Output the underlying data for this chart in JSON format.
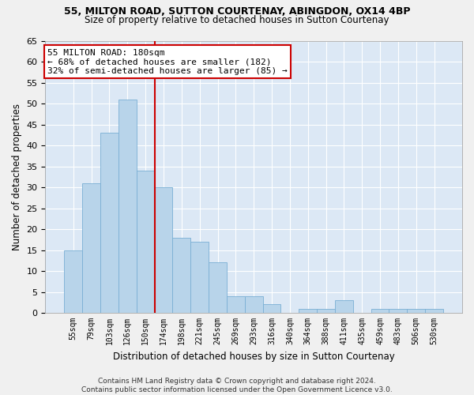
{
  "title_line1": "55, MILTON ROAD, SUTTON COURTENAY, ABINGDON, OX14 4BP",
  "title_line2": "Size of property relative to detached houses in Sutton Courtenay",
  "xlabel": "Distribution of detached houses by size in Sutton Courtenay",
  "ylabel": "Number of detached properties",
  "categories": [
    "55sqm",
    "79sqm",
    "103sqm",
    "126sqm",
    "150sqm",
    "174sqm",
    "198sqm",
    "221sqm",
    "245sqm",
    "269sqm",
    "293sqm",
    "316sqm",
    "340sqm",
    "364sqm",
    "388sqm",
    "411sqm",
    "435sqm",
    "459sqm",
    "483sqm",
    "506sqm",
    "530sqm"
  ],
  "values": [
    15,
    31,
    43,
    51,
    34,
    30,
    18,
    17,
    12,
    4,
    4,
    2,
    0,
    1,
    1,
    3,
    0,
    1,
    1,
    1,
    1
  ],
  "bar_color": "#b8d4ea",
  "bar_edgecolor": "#7aafd4",
  "vline_x": 4.5,
  "vline_color": "#cc0000",
  "annotation_text": "55 MILTON ROAD: 180sqm\n← 68% of detached houses are smaller (182)\n32% of semi-detached houses are larger (85) →",
  "annotation_box_color": "#cc0000",
  "plot_bg_color": "#dce8f5",
  "fig_bg_color": "#f0f0f0",
  "grid_color": "#ffffff",
  "ylim": [
    0,
    65
  ],
  "yticks": [
    0,
    5,
    10,
    15,
    20,
    25,
    30,
    35,
    40,
    45,
    50,
    55,
    60,
    65
  ],
  "footer_line1": "Contains HM Land Registry data © Crown copyright and database right 2024.",
  "footer_line2": "Contains public sector information licensed under the Open Government Licence v3.0."
}
